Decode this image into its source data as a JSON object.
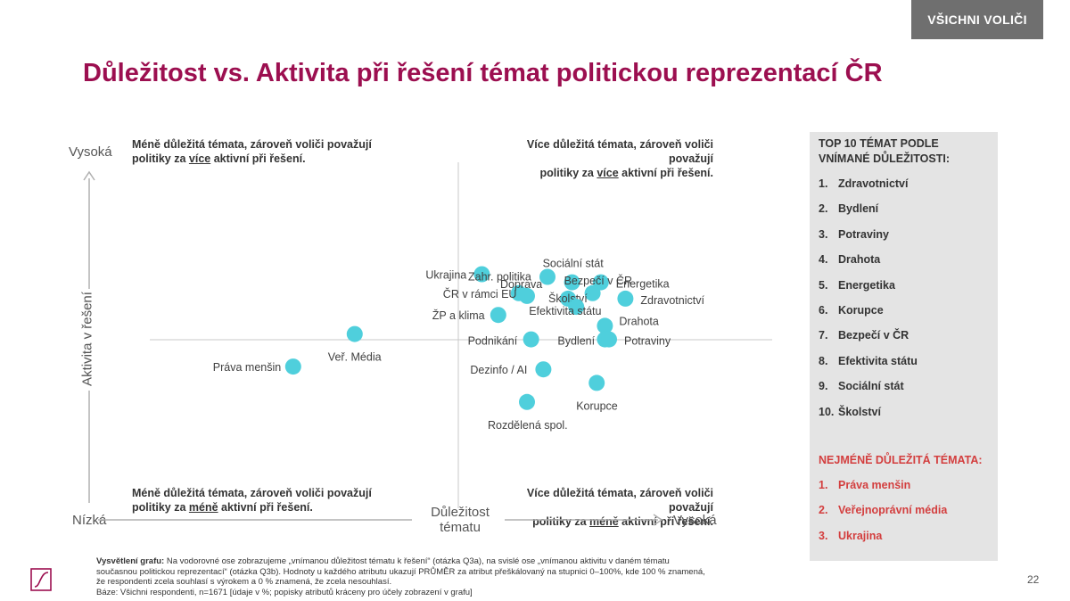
{
  "badge": "VŠICHNI VOLIČI",
  "title": "Důležitost vs. Aktivita při řešení témat politickou reprezentací ČR",
  "quadrants": {
    "top_left": {
      "line1": "Méně důležitá témata, zároveň voliči považují",
      "pre": "politiky za ",
      "em": "více",
      "post": " aktivní při řešení."
    },
    "top_right": {
      "line1": "Více důležitá témata, zároveň voliči považují",
      "pre": "politiky za ",
      "em": "více",
      "post": " aktivní při řešení."
    },
    "bottom_left": {
      "line1": "Méně důležitá témata, zároveň voliči považují",
      "pre": "politiky za ",
      "em": "méně",
      "post": " aktivní při řešení."
    },
    "bottom_right": {
      "line1": "Více důležitá témata, zároveň voliči považují",
      "pre": "politiky za ",
      "em": "méně",
      "post": " aktivní při řešení."
    }
  },
  "chart_data": {
    "type": "scatter",
    "xlabel": "Důležitost tématu",
    "ylabel": "Aktivita v řešení",
    "x_low": "Nízká",
    "x_high": "Vysoká",
    "y_high": "Vysoká",
    "point_color": "#4fcfdc",
    "points": [
      {
        "label": "Práva menšin",
        "x": 3,
        "y": 37
      },
      {
        "label": "Veř. Média",
        "x": 18,
        "y": 49
      },
      {
        "label": "Ukrajina",
        "x": 49,
        "y": 71
      },
      {
        "label": "ŽP a klima",
        "x": 53,
        "y": 56
      },
      {
        "label": "Podnikání",
        "x": 61,
        "y": 47
      },
      {
        "label": "Dezinfo / AI",
        "x": 64,
        "y": 36
      },
      {
        "label": "Rozdělená spol.",
        "x": 60,
        "y": 24
      },
      {
        "label": "ČR v rámci EU",
        "x": 58,
        "y": 64
      },
      {
        "label": "Doprava",
        "x": 60,
        "y": 63
      },
      {
        "label": "Zahr. politika",
        "x": 65,
        "y": 70
      },
      {
        "label": "Sociální stát",
        "x": 71,
        "y": 68
      },
      {
        "label": "Energetika",
        "x": 78,
        "y": 68
      },
      {
        "label": "Bezpečí v ČR",
        "x": 76,
        "y": 64
      },
      {
        "label": "Školství",
        "x": 70,
        "y": 62
      },
      {
        "label": "Efektivita státu",
        "x": 72,
        "y": 59
      },
      {
        "label": "Zdravotnictví",
        "x": 84,
        "y": 62
      },
      {
        "label": "Drahota",
        "x": 79,
        "y": 52
      },
      {
        "label": "Bydlení",
        "x": 79,
        "y": 47
      },
      {
        "label": "Potraviny",
        "x": 80,
        "y": 47
      },
      {
        "label": "Korupce",
        "x": 77,
        "y": 31
      }
    ]
  },
  "panel": {
    "top_heading": "TOP 10 TÉMAT PODLE VNÍMANÉ DŮLEŽITOSTI:",
    "top_items": [
      "Zdravotnictví",
      "Bydlení",
      "Potraviny",
      "Drahota",
      "Energetika",
      "Korupce",
      "Bezpečí v ČR",
      "Efektivita státu",
      "Sociální stát",
      "Školství"
    ],
    "least_heading": "NEJMÉNĚ DŮLEŽITÁ TÉMATA:",
    "least_items": [
      "Práva menšin",
      "Veřejnoprávní média",
      "Ukrajina"
    ],
    "least_color": "#d33e3e"
  },
  "footnote": {
    "label": "Vysvětlení grafu:",
    "line1": " Na vodorovné ose zobrazujeme „vnímanou důležitost tématu k řešení“ (otázka Q3a), na svislé ose „vnímanou aktivitu v daném tématu",
    "line2": "současnou politickou reprezentací“ (otázka Q3b). Hodnoty u každého atributu ukazují PRŮMĚR za atribut přeškálovaný na stupnici 0–100%, kde 100 % znamená,",
    "line3": "že respondenti zcela souhlasí s výrokem a 0 % znamená, že zcela nesouhlasí.",
    "line4": "Báze: Všichni respondenti, n=1671 [údaje v %; popisky atributů kráceny pro účely zobrazení v grafu]"
  },
  "page_number": "22"
}
